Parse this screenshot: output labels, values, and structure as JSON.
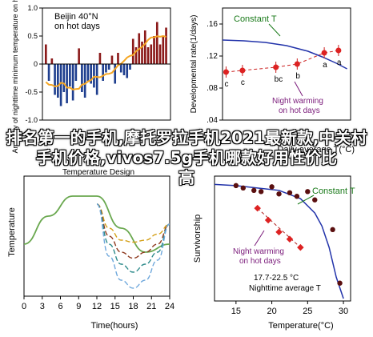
{
  "overlay_text": [
    "排名第一的手机,摩托罗拉手机2021最新款,中关村手机价格,vivos7.5g手机哪款好用性价比",
    "高"
  ],
  "chart_data": [
    {
      "id": "top-left",
      "type": "bar",
      "ylabel": "Anomaly of nighttime minimum temperature on hot days",
      "title_lines": [
        "Beijin 40",
        "on hot days"
      ],
      "ylim": [
        -1.0,
        1.0
      ],
      "yticks": [
        "1.0",
        "0.5",
        "0",
        "-0.5",
        "-1.0"
      ],
      "bar_colors": {
        "positive": "#8b1a1a",
        "negative": "#1f3f8f",
        "trend": "#f5a623"
      },
      "values": [
        0.35,
        -0.3,
        0.1,
        -0.55,
        -0.6,
        -0.75,
        -0.5,
        -0.7,
        -0.4,
        -0.65,
        -0.3,
        0.28,
        -0.5,
        -0.6,
        -0.3,
        -0.35,
        -0.42,
        -0.55,
        0.2,
        -0.3,
        -0.15,
        -0.1,
        0.15,
        -0.35,
        0.2,
        -0.15,
        -0.2,
        -0.25,
        -0.1,
        0.45,
        0.3,
        0.55,
        0.4,
        0.6,
        0.3,
        0.35,
        0.5,
        0.75,
        0.35,
        0.5,
        0.65
      ]
    },
    {
      "id": "top-right",
      "type": "scatter",
      "ylabel": "Developmental rate(1/days)",
      "xlabel": "Daily average T(°C)",
      "yticks": [
        ".16",
        ".12",
        ".08",
        ".04"
      ],
      "ylim": [
        0.04,
        0.18
      ],
      "xlim": [
        12,
        30
      ],
      "curve_label": "Constant T",
      "annotation": [
        "Night warming",
        "on hot days"
      ],
      "constant_curve": {
        "x": [
          12,
          15,
          18,
          21,
          24,
          26,
          28,
          29.5
        ],
        "y": [
          0.14,
          0.139,
          0.137,
          0.133,
          0.126,
          0.119,
          0.111,
          0.104
        ]
      },
      "points": [
        {
          "x": 12.5,
          "y": 0.1,
          "label": "c"
        },
        {
          "x": 14.8,
          "y": 0.102,
          "label": "c"
        },
        {
          "x": 19.5,
          "y": 0.106,
          "label": "bc"
        },
        {
          "x": 22.5,
          "y": 0.11,
          "label": "b"
        },
        {
          "x": 26.3,
          "y": 0.124,
          "label": "a"
        },
        {
          "x": 28.3,
          "y": 0.127,
          "label": "a"
        }
      ]
    },
    {
      "id": "bottom-left",
      "type": "line",
      "title": "Temperature Design",
      "ylabel": "Temperature",
      "xlabel": "Time(hours)",
      "xticks": [
        "0",
        "3",
        "6",
        "9",
        "12",
        "15",
        "18",
        "21",
        "24"
      ],
      "xlim": [
        0,
        24
      ],
      "ylim": [
        10,
        40
      ],
      "series": [
        {
          "x": [
            0,
            4,
            8,
            12,
            16,
            20,
            24
          ],
          "y": [
            23,
            30,
            35,
            35,
            27,
            21,
            23
          ],
          "color": "#6aa84f"
        },
        {
          "x": [
            12,
            14,
            16,
            18,
            20,
            22,
            24
          ],
          "y": [
            33,
            27,
            24,
            23.5,
            24,
            25.5,
            28
          ],
          "color": "#d4a017"
        },
        {
          "x": [
            12,
            14,
            16,
            18,
            20,
            22,
            24
          ],
          "y": [
            33,
            25,
            21,
            19.5,
            21,
            23,
            28
          ],
          "color": "#8e3a1f"
        },
        {
          "x": [
            12,
            14,
            16,
            18,
            20,
            22,
            24
          ],
          "y": [
            33,
            23,
            18,
            16,
            18,
            21,
            28
          ],
          "color": "#2e8b8b"
        },
        {
          "x": [
            12,
            14,
            16,
            18,
            20,
            22,
            24
          ],
          "y": [
            33,
            20,
            14,
            12,
            14,
            19,
            28
          ],
          "color": "#6fa8dc"
        }
      ]
    },
    {
      "id": "bottom-right",
      "type": "scatter",
      "ylabel": "Survivorship",
      "xlabel": "Temperature(°C)",
      "xticks": [
        "15",
        "20",
        "25",
        "30"
      ],
      "xlim": [
        12,
        31
      ],
      "ylim": [
        0,
        1.05
      ],
      "curve_label": "Constant T",
      "annotation": [
        "Night warming",
        "on hot days"
      ],
      "bottom_text": [
        "17.7-22.5 °C",
        "Nighttime average T"
      ],
      "constant_curve": {
        "x": [
          12,
          15,
          18,
          21,
          24,
          26,
          27,
          28,
          29,
          30
        ],
        "y": [
          0.98,
          0.97,
          0.95,
          0.93,
          0.86,
          0.74,
          0.63,
          0.45,
          0.2,
          0.02
        ]
      },
      "dark_points": {
        "x": [
          15,
          16,
          17.5,
          18.5,
          20,
          21,
          22.5,
          23.5,
          25,
          26,
          28.5,
          29.5
        ],
        "y": [
          0.97,
          0.95,
          0.93,
          0.92,
          0.96,
          0.9,
          0.91,
          0.88,
          0.92,
          0.85,
          0.6,
          0.15
        ]
      },
      "warm_points": {
        "x": [
          18,
          19.5,
          21,
          22.5,
          24
        ],
        "y": [
          0.78,
          0.68,
          0.58,
          0.52,
          0.45
        ]
      }
    }
  ]
}
